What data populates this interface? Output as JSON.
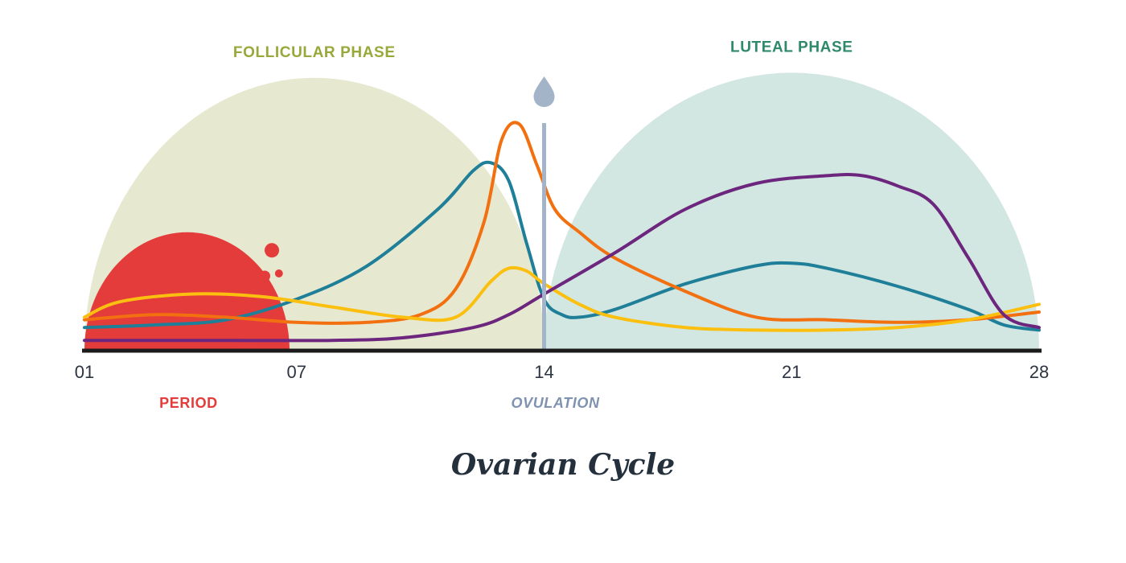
{
  "chart_data": {
    "type": "line",
    "title": "Ovarian Cycle",
    "xlabel": "",
    "ylabel": "",
    "xlim": [
      1,
      28
    ],
    "ylim": [
      0,
      10
    ],
    "grid": false,
    "x_ticks": [
      {
        "value": 1,
        "label": "01"
      },
      {
        "value": 7,
        "label": "07"
      },
      {
        "value": 14,
        "label": "14"
      },
      {
        "value": 21,
        "label": "21"
      },
      {
        "value": 28,
        "label": "28"
      }
    ],
    "phases": [
      {
        "label": "FOLLICULAR PHASE",
        "start": 1,
        "end": 14,
        "peak": 10.6,
        "color": "#e6e9d0",
        "label_color": "#98a83a"
      },
      {
        "label": "LUTEAL PHASE",
        "start": 14,
        "end": 28,
        "peak": 10.8,
        "color": "#d2e7e2",
        "label_color": "#2e8a6a"
      }
    ],
    "period": {
      "label": "PERIOD",
      "start": 1,
      "end": 6.8,
      "peak": 4.6,
      "color": "#e43b3b",
      "drops": [
        {
          "x": 6.3,
          "y": 3.9,
          "r": 1
        },
        {
          "x": 6.1,
          "y": 2.9,
          "r": 0.75
        },
        {
          "x": 6.5,
          "y": 3.0,
          "r": 0.55
        }
      ]
    },
    "ovulation": {
      "label": "OVULATION",
      "x": 14,
      "color": "#a3b4c9",
      "label_color": "#7f93b0"
    },
    "series": [
      {
        "color": "#1f7f99",
        "x": [
          1,
          3,
          5,
          7,
          9,
          11,
          12,
          12.5,
          13,
          13.5,
          14,
          14.5,
          15,
          16,
          18,
          20,
          21,
          22,
          24,
          26,
          27,
          28
        ],
        "y": [
          0.9,
          1.0,
          1.2,
          2.0,
          3.3,
          5.5,
          7.0,
          7.3,
          6.6,
          4.2,
          2.0,
          1.4,
          1.3,
          1.6,
          2.6,
          3.3,
          3.4,
          3.2,
          2.5,
          1.6,
          1.0,
          0.8
        ]
      },
      {
        "color": "#f2700f",
        "x": [
          1,
          3,
          5,
          7,
          9,
          10.5,
          11.5,
          12.3,
          12.8,
          13.3,
          13.8,
          14.3,
          15,
          16,
          18,
          20,
          22,
          24,
          26,
          28
        ],
        "y": [
          1.2,
          1.4,
          1.3,
          1.1,
          1.1,
          1.4,
          2.4,
          5.0,
          8.2,
          8.8,
          7.2,
          5.5,
          4.6,
          3.6,
          2.3,
          1.3,
          1.2,
          1.1,
          1.2,
          1.5
        ]
      },
      {
        "color": "#fbbf10",
        "x": [
          1,
          2,
          4,
          6,
          8,
          10,
          11.5,
          12.5,
          13,
          13.5,
          14,
          15,
          16,
          18,
          20,
          22,
          24,
          26,
          28
        ],
        "y": [
          1.3,
          1.9,
          2.2,
          2.1,
          1.7,
          1.3,
          1.3,
          2.7,
          3.2,
          3.1,
          2.6,
          1.8,
          1.3,
          0.9,
          0.8,
          0.8,
          0.9,
          1.2,
          1.8
        ]
      },
      {
        "color": "#6d267e",
        "x": [
          1,
          5,
          8,
          10,
          12,
          13,
          14,
          16,
          18,
          20,
          22,
          23,
          24,
          25,
          26,
          27,
          28
        ],
        "y": [
          0.4,
          0.4,
          0.4,
          0.5,
          0.9,
          1.4,
          2.2,
          3.8,
          5.5,
          6.5,
          6.8,
          6.8,
          6.4,
          5.7,
          3.6,
          1.4,
          0.9
        ]
      }
    ]
  }
}
